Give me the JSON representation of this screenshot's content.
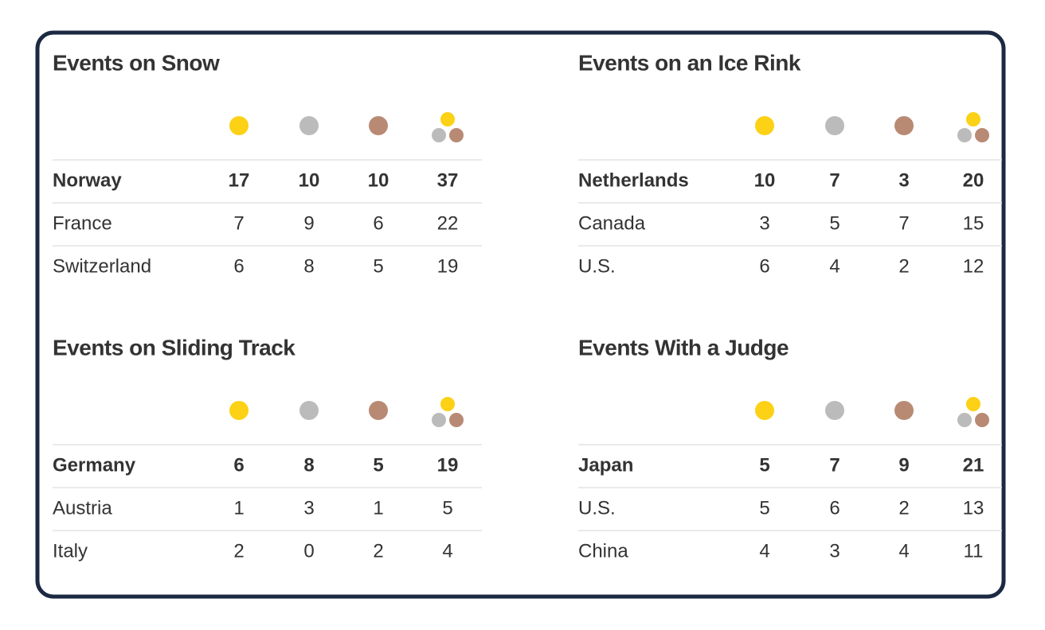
{
  "panels": [
    {
      "title": "Events on Snow",
      "rows": [
        [
          "Norway",
          17,
          10,
          10,
          37
        ],
        [
          "France",
          7,
          9,
          6,
          22
        ],
        [
          "Switzerland",
          6,
          8,
          5,
          19
        ]
      ]
    },
    {
      "title": "Events on an Ice Rink",
      "rows": [
        [
          "Netherlands",
          10,
          7,
          3,
          20
        ],
        [
          "Canada",
          3,
          5,
          7,
          15
        ],
        [
          "U.S.",
          6,
          4,
          2,
          12
        ]
      ]
    },
    {
      "title": "Events on Sliding Track",
      "rows": [
        [
          "Germany",
          6,
          8,
          5,
          19
        ],
        [
          "Austria",
          1,
          3,
          1,
          5
        ],
        [
          "Italy",
          2,
          0,
          2,
          4
        ]
      ]
    },
    {
      "title": "Events With a Judge",
      "rows": [
        [
          "Japan",
          5,
          7,
          9,
          21
        ],
        [
          "U.S.",
          5,
          6,
          2,
          13
        ],
        [
          "China",
          4,
          3,
          4,
          11
        ]
      ]
    }
  ]
}
